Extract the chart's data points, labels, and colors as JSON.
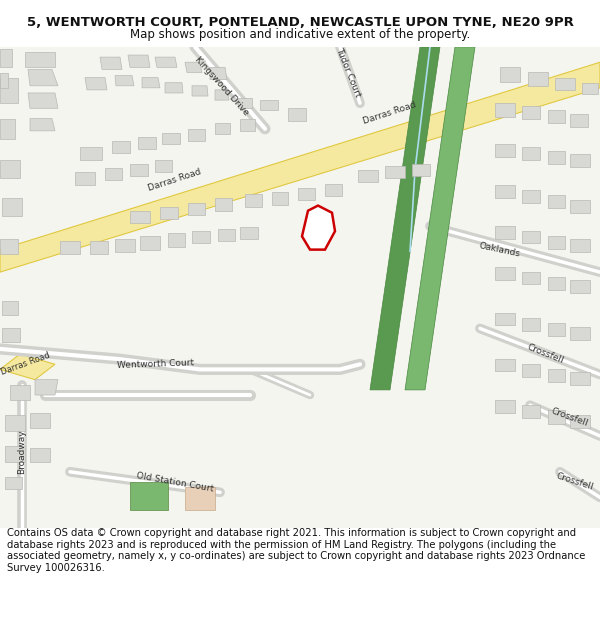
{
  "title_line1": "5, WENTWORTH COURT, PONTELAND, NEWCASTLE UPON TYNE, NE20 9PR",
  "title_line2": "Map shows position and indicative extent of the property.",
  "footer_text": "Contains OS data © Crown copyright and database right 2021. This information is subject to Crown copyright and database rights 2023 and is reproduced with the permission of HM Land Registry. The polygons (including the associated geometry, namely x, y co-ordinates) are subject to Crown copyright and database rights 2023 Ordnance Survey 100026316.",
  "map_bg": "#f5f5f0",
  "road_fill_major": "#f5e9a0",
  "road_edge_major": "#e0c840",
  "road_fill_minor": "#ffffff",
  "road_edge_minor": "#cccccc",
  "building_fill": "#d8d8d4",
  "building_edge": "#b8b8b4",
  "green_fill": "#5a9a50",
  "green_edge": "#4a8840",
  "green2_fill": "#7ab870",
  "property_edge": "#cc0000",
  "property_lw": 1.8,
  "water_color": "#aaddee",
  "fig_w": 6.0,
  "fig_h": 6.25,
  "dpi": 100
}
